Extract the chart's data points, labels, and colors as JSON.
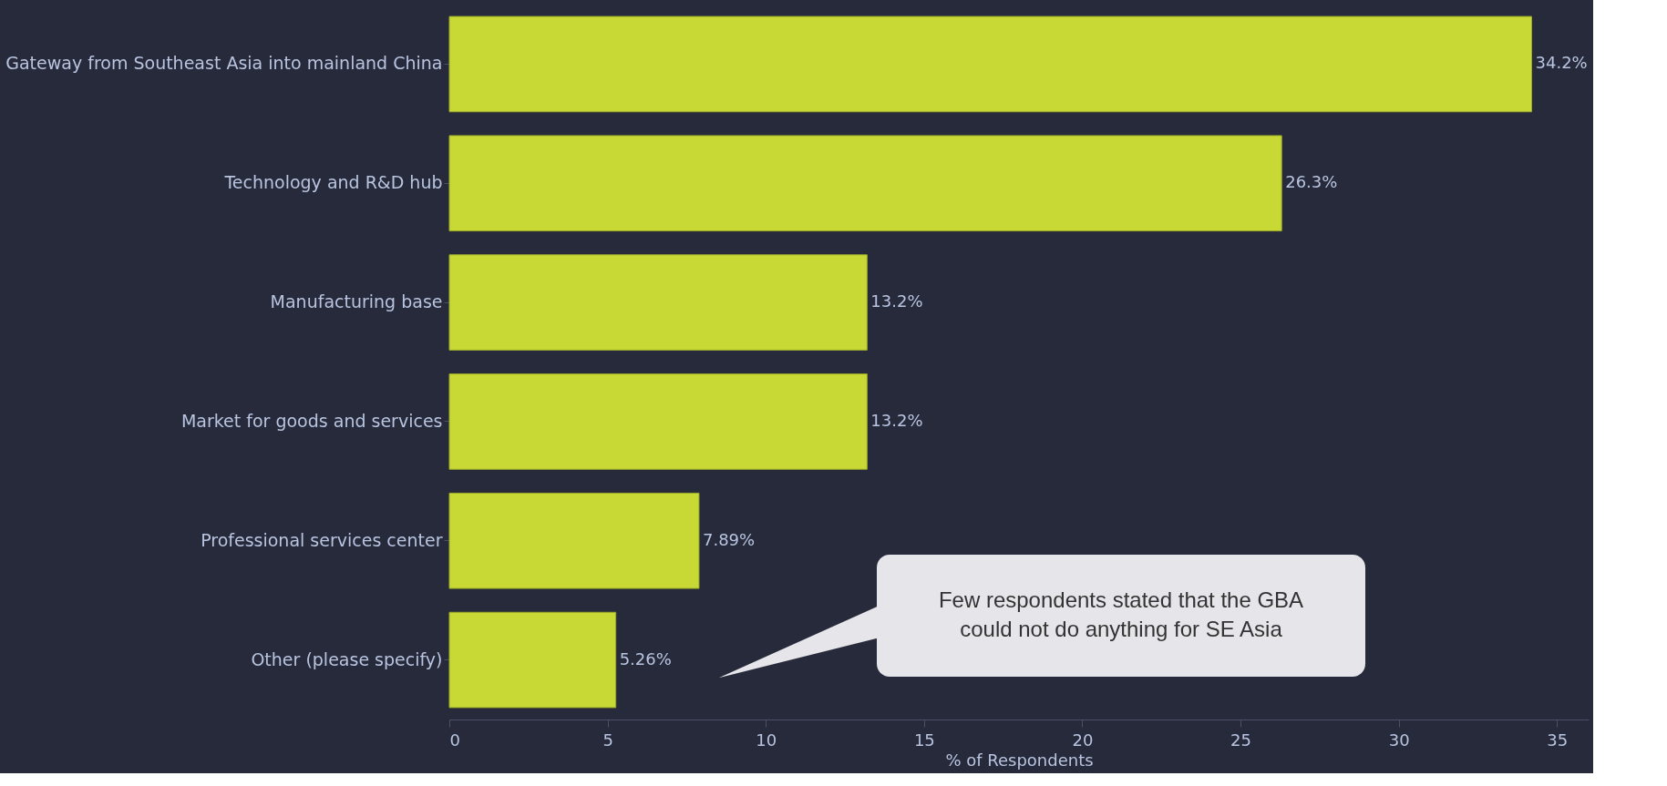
{
  "chart_data": {
    "type": "bar",
    "orientation": "horizontal",
    "xlabel": "% of Respondents",
    "categories": [
      "Gateway from Southeast Asia into mainland China",
      "Technology and R&D hub",
      "Manufacturing base",
      "Market for goods and services",
      "Professional services center",
      "Other (please specify)"
    ],
    "values": [
      34.2,
      26.3,
      13.2,
      13.2,
      7.89,
      5.26
    ],
    "value_labels": [
      "34.2%",
      "26.3%",
      "13.2%",
      "13.2%",
      "7.89%",
      "5.26%"
    ],
    "color": "#c8d935",
    "xlim": [
      0,
      36
    ],
    "xticks": [
      0,
      5,
      10,
      15,
      20,
      25,
      30,
      35
    ],
    "grid": false,
    "annotations": [
      "Few respondents stated that the GBA\ncould not do anything for SE Asia"
    ]
  }
}
